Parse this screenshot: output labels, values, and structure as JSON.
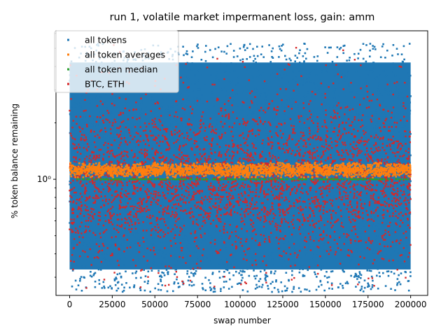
{
  "chart_data": {
    "type": "scatter",
    "title": "run 1, volatile market impermanent loss, gain: amm",
    "xlabel": "swap number",
    "ylabel": "% token balance remaining",
    "xlim": [
      -8000,
      210000
    ],
    "ylim": [
      0.24,
      6.2
    ],
    "yscale": "log",
    "x_ticks": [
      0,
      25000,
      50000,
      75000,
      100000,
      125000,
      150000,
      175000,
      200000
    ],
    "x_tick_labels": [
      "0",
      "25000",
      "50000",
      "75000",
      "100000",
      "125000",
      "150000",
      "175000",
      "200000"
    ],
    "y_ticks": [
      1
    ],
    "y_tick_labels": [
      "10⁰"
    ],
    "legend_position": "upper-left",
    "grid": false,
    "series": [
      {
        "name": "all tokens",
        "color": "#1f77b4",
        "marker": "square-dot",
        "x_range": [
          0,
          200000
        ],
        "y_band": [
          0.25,
          5.3
        ],
        "description_values": {
          "min": 0.25,
          "max": 5.3,
          "center": 1.0
        }
      },
      {
        "name": "all token averages",
        "color": "#ff7f0e",
        "marker": "square-dot",
        "x_range": [
          0,
          200000
        ],
        "y_band": [
          1.02,
          1.23
        ],
        "description_values": {
          "min": 1.02,
          "max": 1.23,
          "center": 1.12
        }
      },
      {
        "name": "all token median",
        "color": "#2ca02c",
        "marker": "square-dot",
        "x_range": [
          0,
          200000
        ],
        "y_band": [
          0.99,
          1.01
        ],
        "description_values": {
          "min": 0.99,
          "max": 1.01,
          "center": 1.0
        }
      },
      {
        "name": "BTC, ETH",
        "color": "#d62728",
        "marker": "square-dot",
        "x_range": [
          0,
          200000
        ],
        "y_band": [
          0.26,
          5.3
        ],
        "description_values": {
          "min": 0.26,
          "max": 5.3,
          "center": 1.0
        }
      }
    ]
  }
}
